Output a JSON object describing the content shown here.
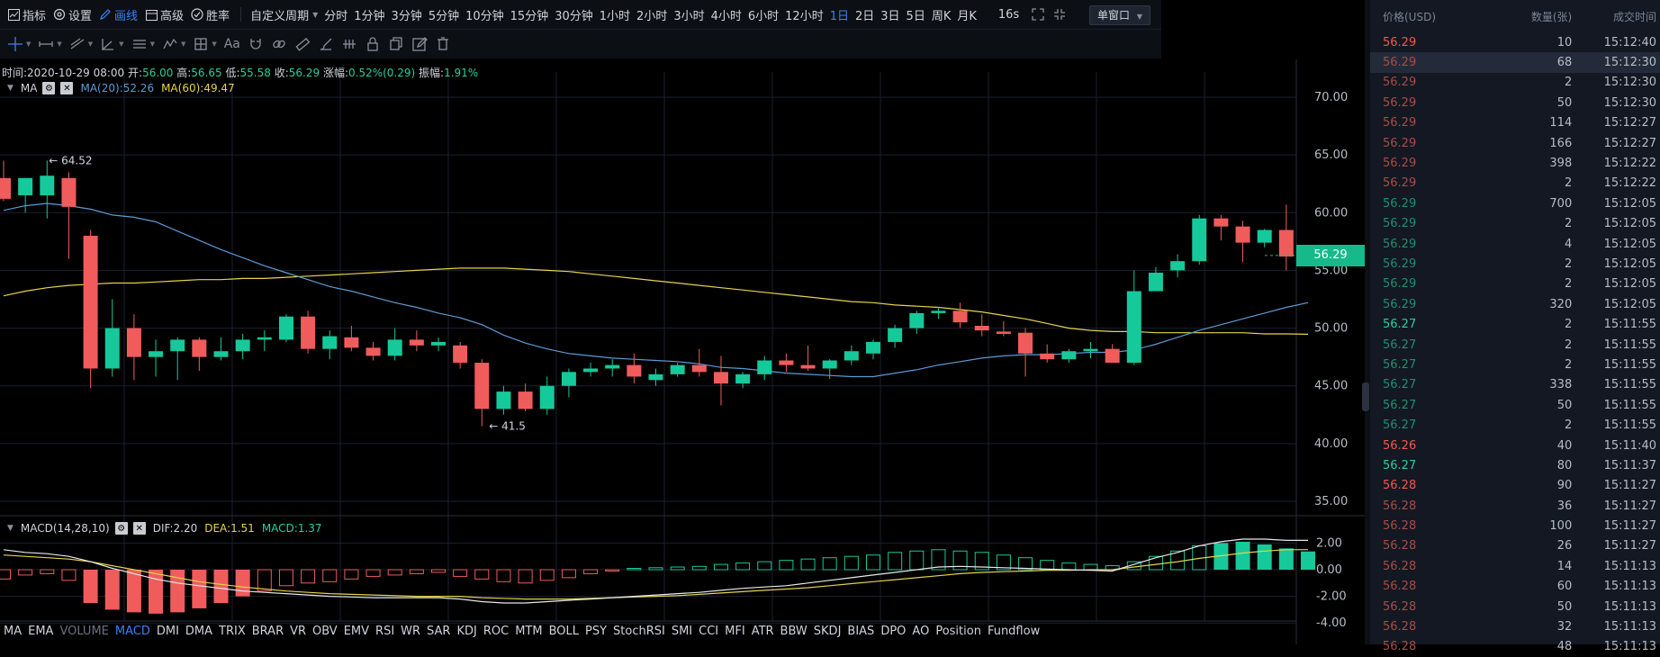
{
  "toolbar": {
    "indicator_label": "指标",
    "settings_label": "设置",
    "draw_label": "画线",
    "advanced_label": "高级",
    "winrate_label": "胜率",
    "custom_period_label": "自定义周期",
    "periods": [
      "分时",
      "1分钟",
      "3分钟",
      "5分钟",
      "10分钟",
      "15分钟",
      "30分钟",
      "1小时",
      "2小时",
      "3小时",
      "4小时",
      "6小时",
      "12小时",
      "1日",
      "2日",
      "3日",
      "5日",
      "周K",
      "月K"
    ],
    "active_period": "1日",
    "countdown": "16s",
    "window_mode": "单窗口"
  },
  "info": {
    "time_label": "时间:",
    "time": "2020-10-29 08:00",
    "open_label": "开:",
    "open": "56.00",
    "high_label": "高:",
    "high": "56.65",
    "low_label": "低:",
    "low": "55.58",
    "close_label": "收:",
    "close": "56.29",
    "change_label": "涨幅:",
    "change": "0.52%(0.29)",
    "amp_label": "振幅:",
    "amp": "1.91%"
  },
  "ma": {
    "name": "MA",
    "ma20": "MA(20):52.26",
    "ma60": "MA(60):49.47",
    "ma20_color": "#5b9bd5",
    "ma60_color": "#e5d34a"
  },
  "macd": {
    "name": "MACD(14,28,10)",
    "dif": "DIF:2.20",
    "dea": "DEA:1.51",
    "macd": "MACD:1.37"
  },
  "indicators": [
    "MA",
    "EMA",
    "VOLUME",
    "MACD",
    "DMI",
    "DMA",
    "TRIX",
    "BRAR",
    "VR",
    "OBV",
    "EMV",
    "RSI",
    "WR",
    "SAR",
    "KDJ",
    "ROC",
    "MTM",
    "BOLL",
    "PSY",
    "StochRSI",
    "SMI",
    "CCI",
    "MFI",
    "ATR",
    "BBW",
    "SKDJ",
    "BIAS",
    "DPO",
    "AO",
    "Position",
    "Fundflow"
  ],
  "current_price": "56.29",
  "annotations": {
    "high_mark": "← 64.52",
    "low_mark": "← 41.5"
  },
  "price_axis": [
    "70.00",
    "65.00",
    "60.00",
    "55.00",
    "50.00",
    "45.00",
    "40.00",
    "35.00"
  ],
  "macd_axis": [
    "2.00",
    "0.00",
    "-2.00",
    "-4.00"
  ],
  "trades_header": {
    "price": "价格(USD)",
    "qty": "数量(张)",
    "time": "成交时间"
  },
  "trades": [
    {
      "price": "56.29",
      "qty": "10",
      "time": "15:12:40",
      "side": "red",
      "bright": true
    },
    {
      "price": "56.29",
      "qty": "68",
      "time": "15:12:30",
      "side": "red",
      "bright": false
    },
    {
      "price": "56.29",
      "qty": "2",
      "time": "15:12:30",
      "side": "red",
      "bright": false
    },
    {
      "price": "56.29",
      "qty": "50",
      "time": "15:12:30",
      "side": "red",
      "bright": false
    },
    {
      "price": "56.29",
      "qty": "114",
      "time": "15:12:27",
      "side": "red",
      "bright": false
    },
    {
      "price": "56.29",
      "qty": "166",
      "time": "15:12:27",
      "side": "red",
      "bright": false
    },
    {
      "price": "56.29",
      "qty": "398",
      "time": "15:12:22",
      "side": "red",
      "bright": false
    },
    {
      "price": "56.29",
      "qty": "2",
      "time": "15:12:22",
      "side": "red",
      "bright": false
    },
    {
      "price": "56.29",
      "qty": "700",
      "time": "15:12:05",
      "side": "green",
      "bright": false
    },
    {
      "price": "56.29",
      "qty": "2",
      "time": "15:12:05",
      "side": "green",
      "bright": false
    },
    {
      "price": "56.29",
      "qty": "4",
      "time": "15:12:05",
      "side": "green",
      "bright": false
    },
    {
      "price": "56.29",
      "qty": "2",
      "time": "15:12:05",
      "side": "green",
      "bright": false
    },
    {
      "price": "56.29",
      "qty": "2",
      "time": "15:12:05",
      "side": "green",
      "bright": false
    },
    {
      "price": "56.29",
      "qty": "320",
      "time": "15:12:05",
      "side": "green",
      "bright": false
    },
    {
      "price": "56.27",
      "qty": "2",
      "time": "15:11:55",
      "side": "green",
      "bright": true
    },
    {
      "price": "56.27",
      "qty": "2",
      "time": "15:11:55",
      "side": "green",
      "bright": false
    },
    {
      "price": "56.27",
      "qty": "2",
      "time": "15:11:55",
      "side": "green",
      "bright": false
    },
    {
      "price": "56.27",
      "qty": "338",
      "time": "15:11:55",
      "side": "green",
      "bright": false
    },
    {
      "price": "56.27",
      "qty": "50",
      "time": "15:11:55",
      "side": "green",
      "bright": false
    },
    {
      "price": "56.27",
      "qty": "2",
      "time": "15:11:55",
      "side": "green",
      "bright": false
    },
    {
      "price": "56.26",
      "qty": "40",
      "time": "15:11:40",
      "side": "red",
      "bright": true
    },
    {
      "price": "56.27",
      "qty": "80",
      "time": "15:11:37",
      "side": "green",
      "bright": true
    },
    {
      "price": "56.28",
      "qty": "90",
      "time": "15:11:27",
      "side": "red",
      "bright": true
    },
    {
      "price": "56.28",
      "qty": "36",
      "time": "15:11:27",
      "side": "red",
      "bright": false
    },
    {
      "price": "56.28",
      "qty": "100",
      "time": "15:11:27",
      "side": "red",
      "bright": false
    },
    {
      "price": "56.28",
      "qty": "26",
      "time": "15:11:27",
      "side": "red",
      "bright": false
    },
    {
      "price": "56.28",
      "qty": "14",
      "time": "15:11:13",
      "side": "red",
      "bright": false
    },
    {
      "price": "56.28",
      "qty": "60",
      "time": "15:11:13",
      "side": "red",
      "bright": false
    },
    {
      "price": "56.28",
      "qty": "50",
      "time": "15:11:13",
      "side": "red",
      "bright": false
    },
    {
      "price": "56.28",
      "qty": "32",
      "time": "15:11:13",
      "side": "red",
      "bright": false
    },
    {
      "price": "56.28",
      "qty": "48",
      "time": "15:11:13",
      "side": "red",
      "bright": false
    }
  ],
  "chart_data": {
    "type": "candlestick",
    "ylim": [
      33,
      72
    ],
    "candles": [
      {
        "o": 63,
        "h": 64.5,
        "l": 61,
        "c": 61.2
      },
      {
        "o": 61.5,
        "h": 63,
        "l": 60,
        "c": 63
      },
      {
        "o": 61.5,
        "h": 64.52,
        "l": 59.5,
        "c": 63.2
      },
      {
        "o": 63,
        "h": 63.5,
        "l": 56,
        "c": 60.5
      },
      {
        "o": 58,
        "h": 58.5,
        "l": 44.8,
        "c": 46.5
      },
      {
        "o": 46.5,
        "h": 52.5,
        "l": 45.8,
        "c": 50
      },
      {
        "o": 50,
        "h": 51.2,
        "l": 45.5,
        "c": 47.5
      },
      {
        "o": 47.5,
        "h": 49,
        "l": 45.8,
        "c": 48
      },
      {
        "o": 48,
        "h": 49.2,
        "l": 45.5,
        "c": 49
      },
      {
        "o": 49,
        "h": 49.2,
        "l": 46.3,
        "c": 47.5
      },
      {
        "o": 47.5,
        "h": 49.2,
        "l": 47.2,
        "c": 48
      },
      {
        "o": 48,
        "h": 49.5,
        "l": 47.3,
        "c": 49
      },
      {
        "o": 49,
        "h": 49.8,
        "l": 48,
        "c": 49.2
      },
      {
        "o": 49,
        "h": 51.2,
        "l": 48.8,
        "c": 51
      },
      {
        "o": 51,
        "h": 51.5,
        "l": 47.8,
        "c": 48.2
      },
      {
        "o": 48.2,
        "h": 49.8,
        "l": 47.3,
        "c": 49.3
      },
      {
        "o": 49.2,
        "h": 50.2,
        "l": 48,
        "c": 48.3
      },
      {
        "o": 48.3,
        "h": 48.8,
        "l": 47.2,
        "c": 47.6
      },
      {
        "o": 47.6,
        "h": 50,
        "l": 47.2,
        "c": 49
      },
      {
        "o": 49,
        "h": 49.8,
        "l": 48,
        "c": 48.5
      },
      {
        "o": 48.5,
        "h": 49.2,
        "l": 48,
        "c": 48.8
      },
      {
        "o": 48.5,
        "h": 48.8,
        "l": 46.5,
        "c": 47
      },
      {
        "o": 47,
        "h": 47.3,
        "l": 41.5,
        "c": 43
      },
      {
        "o": 43,
        "h": 45,
        "l": 42.5,
        "c": 44.5
      },
      {
        "o": 44.5,
        "h": 45.2,
        "l": 42.8,
        "c": 43
      },
      {
        "o": 43,
        "h": 45.8,
        "l": 42.5,
        "c": 45
      },
      {
        "o": 45,
        "h": 46.5,
        "l": 44,
        "c": 46.2
      },
      {
        "o": 46.2,
        "h": 47,
        "l": 45.8,
        "c": 46.5
      },
      {
        "o": 46.5,
        "h": 47.3,
        "l": 45.8,
        "c": 46.8
      },
      {
        "o": 46.8,
        "h": 47.8,
        "l": 45.2,
        "c": 45.8
      },
      {
        "o": 45.5,
        "h": 46.5,
        "l": 45,
        "c": 46
      },
      {
        "o": 46,
        "h": 47,
        "l": 45.8,
        "c": 46.8
      },
      {
        "o": 46.8,
        "h": 48.2,
        "l": 45.8,
        "c": 46.2
      },
      {
        "o": 46.2,
        "h": 47.6,
        "l": 43.3,
        "c": 45.2
      },
      {
        "o": 45.2,
        "h": 46.2,
        "l": 44.8,
        "c": 46
      },
      {
        "o": 46,
        "h": 47.6,
        "l": 45.5,
        "c": 47.2
      },
      {
        "o": 47.2,
        "h": 47.8,
        "l": 46.2,
        "c": 46.8
      },
      {
        "o": 46.8,
        "h": 48.5,
        "l": 46.3,
        "c": 46.5
      },
      {
        "o": 46.5,
        "h": 47.3,
        "l": 45.6,
        "c": 47.2
      },
      {
        "o": 47.2,
        "h": 48.5,
        "l": 46.8,
        "c": 48
      },
      {
        "o": 47.8,
        "h": 49,
        "l": 47.3,
        "c": 48.8
      },
      {
        "o": 48.8,
        "h": 50.3,
        "l": 48.3,
        "c": 50
      },
      {
        "o": 50,
        "h": 51.5,
        "l": 49.5,
        "c": 51.3
      },
      {
        "o": 51.3,
        "h": 51.8,
        "l": 50.8,
        "c": 51.5
      },
      {
        "o": 51.5,
        "h": 52.2,
        "l": 50,
        "c": 50.5
      },
      {
        "o": 50.2,
        "h": 51.2,
        "l": 49.3,
        "c": 49.8
      },
      {
        "o": 49.7,
        "h": 50.6,
        "l": 49.3,
        "c": 49.5
      },
      {
        "o": 49.6,
        "h": 50,
        "l": 45.8,
        "c": 47.8
      },
      {
        "o": 47.8,
        "h": 48.6,
        "l": 47,
        "c": 47.3
      },
      {
        "o": 47.3,
        "h": 48.2,
        "l": 47,
        "c": 48
      },
      {
        "o": 48,
        "h": 48.8,
        "l": 47.4,
        "c": 48.2
      },
      {
        "o": 48.2,
        "h": 48.6,
        "l": 47,
        "c": 47
      },
      {
        "o": 47,
        "h": 55,
        "l": 46.8,
        "c": 53.2
      },
      {
        "o": 53.2,
        "h": 55.3,
        "l": 53.2,
        "c": 54.8
      },
      {
        "o": 55,
        "h": 56.4,
        "l": 54.4,
        "c": 55.8
      },
      {
        "o": 55.8,
        "h": 59.8,
        "l": 55.5,
        "c": 59.5
      },
      {
        "o": 59.5,
        "h": 59.8,
        "l": 57.6,
        "c": 58.8
      },
      {
        "o": 58.8,
        "h": 59.3,
        "l": 55.7,
        "c": 57.4
      },
      {
        "o": 57.4,
        "h": 58.6,
        "l": 57,
        "c": 58.5
      },
      {
        "o": 58.5,
        "h": 60.7,
        "l": 55,
        "c": 56.2
      },
      {
        "o": 56,
        "h": 56.65,
        "l": 55.58,
        "c": 56.29
      }
    ],
    "ma20": [
      60.2,
      60.6,
      60.8,
      60.6,
      60.3,
      59.8,
      59.6,
      59.2,
      58.4,
      57.6,
      56.8,
      56.1,
      55.4,
      54.8,
      54.2,
      53.6,
      53.2,
      52.7,
      52.2,
      51.8,
      51.3,
      50.9,
      50.3,
      49.4,
      48.7,
      48.2,
      47.8,
      47.6,
      47.4,
      47.3,
      47.2,
      47.1,
      46.9,
      46.6,
      46.5,
      46.3,
      46.1,
      46,
      45.9,
      45.8,
      45.8,
      46.1,
      46.4,
      46.8,
      47.1,
      47.4,
      47.6,
      47.7,
      47.7,
      47.8,
      47.9,
      47.9,
      48.1,
      48.6,
      49.2,
      49.8,
      50.3,
      50.8,
      51.3,
      51.8,
      52.2
    ],
    "ma60": [
      52.8,
      53.2,
      53.5,
      53.7,
      53.8,
      53.9,
      53.9,
      54,
      54.1,
      54.2,
      54.2,
      54.3,
      54.3,
      54.4,
      54.5,
      54.6,
      54.7,
      54.8,
      54.9,
      55,
      55.1,
      55.2,
      55.2,
      55.2,
      55.1,
      55,
      54.9,
      54.7,
      54.5,
      54.3,
      54.1,
      53.9,
      53.7,
      53.5,
      53.3,
      53.1,
      52.9,
      52.7,
      52.5,
      52.3,
      52.2,
      52,
      51.9,
      51.8,
      51.6,
      51.4,
      51.1,
      50.8,
      50.4,
      50,
      49.8,
      49.7,
      49.7,
      49.6,
      49.6,
      49.6,
      49.6,
      49.6,
      49.5,
      49.5,
      49.47
    ],
    "macd_hist": [
      -0.7,
      -0.4,
      -0.3,
      -0.8,
      -2.5,
      -3.0,
      -3.2,
      -3.3,
      -3.2,
      -2.9,
      -2.5,
      -2.0,
      -1.6,
      -1.2,
      -1.0,
      -0.9,
      -0.7,
      -0.5,
      -0.4,
      -0.3,
      -0.2,
      -0.5,
      -0.7,
      -0.9,
      -1.0,
      -0.8,
      -0.6,
      -0.3,
      -0.1,
      0.1,
      0.15,
      0.2,
      0.25,
      0.4,
      0.5,
      0.6,
      0.7,
      0.8,
      0.9,
      1.0,
      1.1,
      1.3,
      1.4,
      1.5,
      1.4,
      1.3,
      1.1,
      0.9,
      0.7,
      0.5,
      0.4,
      0.3,
      0.6,
      1.0,
      1.4,
      1.8,
      2.0,
      2.1,
      1.9,
      1.6,
      1.37
    ],
    "dif": [
      1.5,
      1.3,
      1.2,
      1.0,
      0.6,
      0.1,
      -0.3,
      -0.7,
      -1.0,
      -1.2,
      -1.4,
      -1.6,
      -1.7,
      -1.8,
      -1.9,
      -2.0,
      -2.05,
      -2.1,
      -2.1,
      -2.1,
      -2.1,
      -2.2,
      -2.4,
      -2.5,
      -2.5,
      -2.4,
      -2.3,
      -2.2,
      -2.1,
      -2.0,
      -1.9,
      -1.8,
      -1.7,
      -1.55,
      -1.4,
      -1.3,
      -1.2,
      -1.0,
      -0.8,
      -0.6,
      -0.4,
      -0.2,
      0.0,
      0.2,
      0.25,
      0.2,
      0.15,
      0.1,
      0.05,
      0.0,
      -0.05,
      -0.1,
      0.4,
      0.9,
      1.3,
      1.8,
      2.1,
      2.3,
      2.3,
      2.2,
      2.2
    ],
    "dea": [
      1.1,
      1.0,
      0.9,
      0.8,
      0.6,
      0.3,
      0.0,
      -0.3,
      -0.6,
      -0.9,
      -1.1,
      -1.3,
      -1.45,
      -1.6,
      -1.7,
      -1.8,
      -1.85,
      -1.9,
      -1.95,
      -2.0,
      -2.0,
      -2.0,
      -2.1,
      -2.15,
      -2.2,
      -2.2,
      -2.2,
      -2.15,
      -2.1,
      -2.05,
      -2.0,
      -1.95,
      -1.85,
      -1.75,
      -1.65,
      -1.55,
      -1.45,
      -1.35,
      -1.2,
      -1.05,
      -0.9,
      -0.75,
      -0.6,
      -0.45,
      -0.3,
      -0.2,
      -0.15,
      -0.1,
      -0.05,
      -0.05,
      0.0,
      0.0,
      0.2,
      0.4,
      0.6,
      0.85,
      1.05,
      1.25,
      1.4,
      1.5,
      1.51
    ]
  }
}
